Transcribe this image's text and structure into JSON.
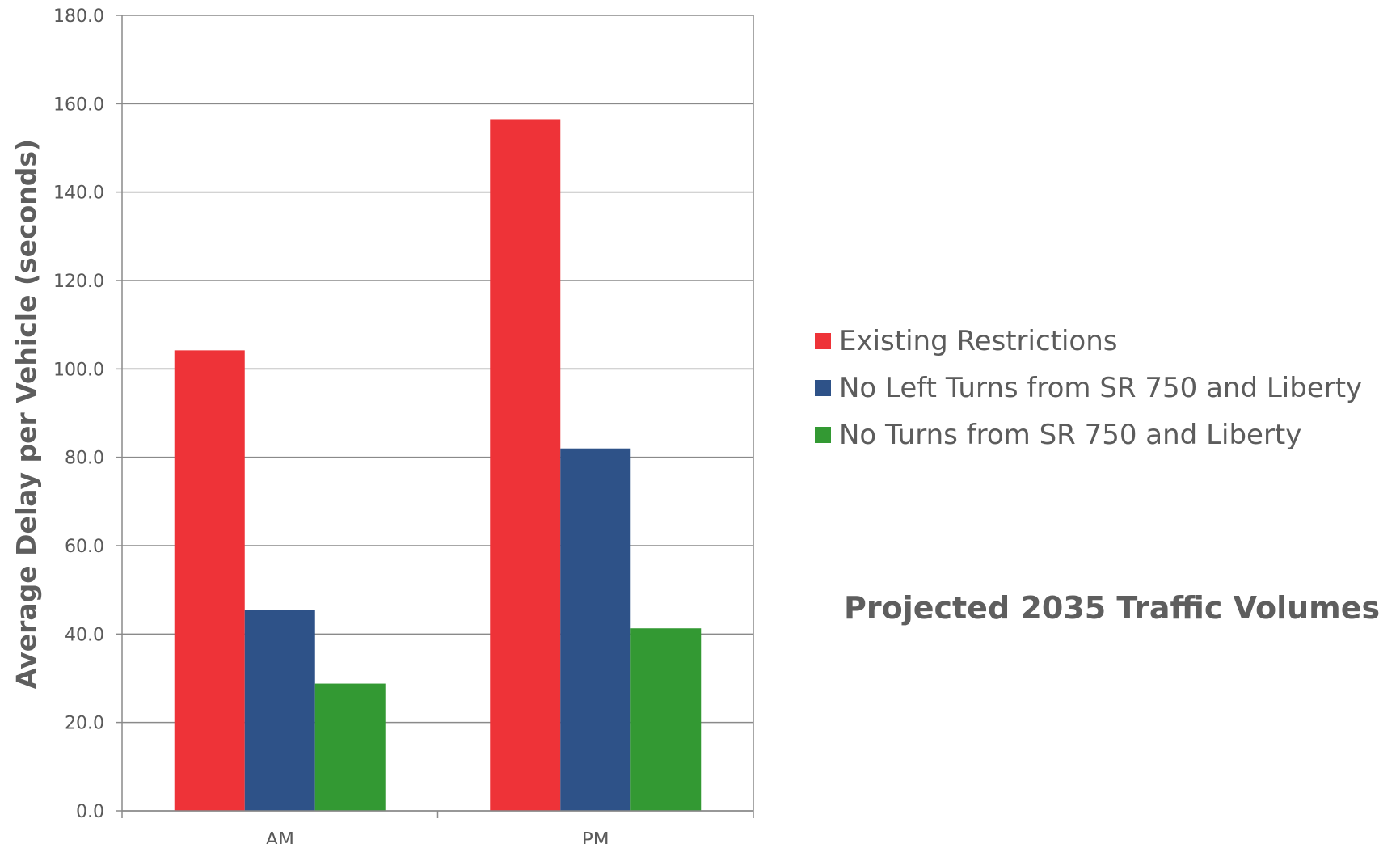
{
  "chart_data": {
    "type": "bar",
    "categories": [
      "AM",
      "PM"
    ],
    "series": [
      {
        "name": "Existing Restrictions",
        "color": "#ee3338",
        "values": [
          104.2,
          156.5
        ]
      },
      {
        "name": "No Left Turns from SR 750 and Liberty",
        "color": "#2e5288",
        "values": [
          45.5,
          82.0
        ]
      },
      {
        "name": "No Turns from SR 750 and Liberty",
        "color": "#339933",
        "values": [
          28.8,
          41.3
        ]
      }
    ],
    "ylabel": "Average Delay per Vehicle (seconds)",
    "ylim": [
      0,
      180
    ],
    "yticks": [
      "0.0",
      "20.0",
      "40.0",
      "60.0",
      "80.0",
      "100.0",
      "120.0",
      "140.0",
      "160.0",
      "180.0"
    ],
    "grid": true,
    "legend_position": "right",
    "annotation": "Projected 2035 Traffic Volumes"
  }
}
